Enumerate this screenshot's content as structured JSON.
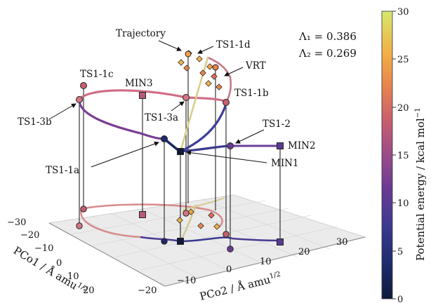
{
  "chart_data": {
    "type": "3d-path",
    "axes": {
      "x_label": "PCo1 / Å amu",
      "x_label_sup": "1/2",
      "y_label": "PCo2 / Å amu",
      "y_label_sup": "1/2",
      "x_ticks": [
        "−30",
        "−20",
        "−10",
        "0",
        "10",
        "20"
      ],
      "y_ticks": [
        "−20",
        "−10",
        "0",
        "10",
        "20",
        "30"
      ],
      "x_range": [
        -30,
        25
      ],
      "y_range": [
        -20,
        30
      ],
      "z_range": [
        0,
        30
      ]
    },
    "colorbar": {
      "label": "Potential energy / kcal mol",
      "label_sup": "−1",
      "ticks": [
        "0",
        "5",
        "10",
        "15",
        "20",
        "25",
        "30"
      ],
      "range": [
        0,
        30
      ],
      "colormap": [
        "#0d1a3c",
        "#1d2b6b",
        "#3a3a8f",
        "#6a3a93",
        "#9a4b8a",
        "#c85f6f",
        "#e8844d",
        "#f2b146",
        "#eada62",
        "#d6e86e"
      ]
    },
    "parameters": [
      {
        "label": "Λ₁ = 0.386"
      },
      {
        "label": "Λ₂ = 0.269"
      }
    ],
    "points": [
      {
        "label": "TS1-1c",
        "pco1": -27,
        "pco2": -11,
        "energy": 18,
        "marker": "circle"
      },
      {
        "label": "TS1-3b",
        "pco1": -26,
        "pco2": -12,
        "energy": 17,
        "marker": "circle"
      },
      {
        "label": "MIN3",
        "pco1": -14,
        "pco2": -7,
        "energy": 15,
        "marker": "square"
      },
      {
        "label": "TS1-3a",
        "pco1": -8,
        "pco2": -4,
        "energy": 16,
        "marker": "circle"
      },
      {
        "label": "TS1-1a",
        "pco1": -2,
        "pco2": -13,
        "energy": 3,
        "marker": "circle"
      },
      {
        "label": "MIN1",
        "pco1": 0,
        "pco2": -10,
        "energy": 0,
        "marker": "square"
      },
      {
        "label": "TS1-1b",
        "pco1": 9,
        "pco2": 2,
        "energy": 17,
        "marker": "circle"
      },
      {
        "label": "TS1-2",
        "pco1": 8,
        "pco2": 5,
        "energy": 9,
        "marker": "circle"
      },
      {
        "label": "MIN2",
        "pco1": 6,
        "pco2": 15,
        "energy": 8,
        "marker": "square"
      },
      {
        "label": "TS1-1d",
        "pco1": 4,
        "pco2": -3,
        "energy": 26,
        "marker": "circle"
      },
      {
        "label": "VRT",
        "pco1": 8,
        "pco2": 0,
        "energy": 24,
        "marker": "circle"
      }
    ],
    "annotations": [
      {
        "text": "Trajectory"
      }
    ]
  }
}
